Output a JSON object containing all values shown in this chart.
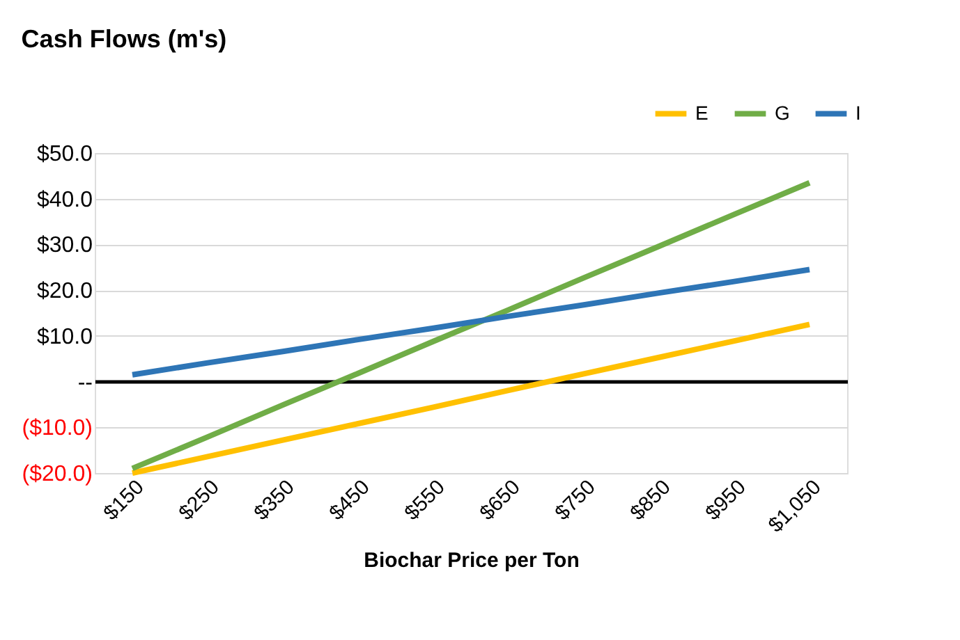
{
  "chart_data": {
    "type": "line",
    "title": "Cash Flows (m's)",
    "xlabel": "Biochar Price per Ton",
    "categories": [
      "$150",
      "$250",
      "$350",
      "$450",
      "$550",
      "$650",
      "$750",
      "$850",
      "$950",
      "$1,050"
    ],
    "series": [
      {
        "name": "E",
        "color": "#ffc000",
        "values": [
          -20,
          -16.4,
          -12.8,
          -9.2,
          -5.6,
          -1.9,
          1.7,
          5.3,
          8.9,
          12.5
        ]
      },
      {
        "name": "G",
        "color": "#70ad47",
        "values": [
          -19,
          -12.1,
          -5.1,
          1.8,
          8.8,
          15.7,
          22.7,
          29.6,
          36.6,
          43.5
        ]
      },
      {
        "name": "I",
        "color": "#2e75b6",
        "values": [
          1.5,
          4.1,
          6.6,
          9.2,
          11.7,
          14.3,
          16.8,
          19.4,
          21.9,
          24.5
        ]
      }
    ],
    "ylim": [
      -20,
      50
    ],
    "yticks": [
      {
        "value": -20,
        "label": "($20.0)"
      },
      {
        "value": -10,
        "label": "($10.0)"
      },
      {
        "value": 0,
        "label": "--"
      },
      {
        "value": 10,
        "label": "$10.0"
      },
      {
        "value": 20,
        "label": "$20.0"
      },
      {
        "value": 30,
        "label": "$30.0"
      },
      {
        "value": 40,
        "label": "$40.0"
      },
      {
        "value": 50,
        "label": "$50.0"
      }
    ],
    "grid": "y",
    "legend": "top right",
    "marker": "none",
    "line_style": "solid"
  }
}
